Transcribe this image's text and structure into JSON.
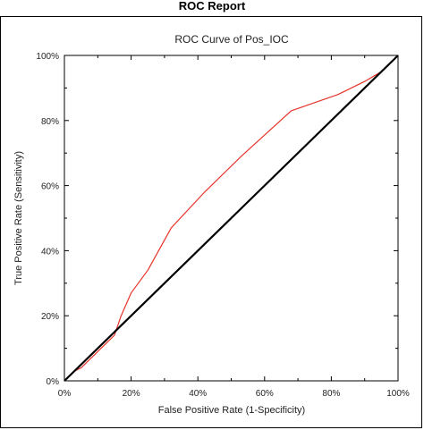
{
  "report": {
    "title": "ROC Report"
  },
  "chart_data": {
    "type": "line",
    "title": "ROC Curve of Pos_IOC",
    "xlabel": "False Positive Rate (1-Specificity)",
    "ylabel": "True Positive Rate (Sensitivity)",
    "xlim": [
      0,
      1
    ],
    "ylim": [
      0,
      1
    ],
    "x_ticks": [
      "0%",
      "20%",
      "40%",
      "60%",
      "80%",
      "100%"
    ],
    "y_ticks": [
      "0%",
      "20%",
      "40%",
      "60%",
      "80%",
      "100%"
    ],
    "grid": false,
    "legend": "none",
    "series": [
      {
        "color": "#e8332a",
        "x": [
          0,
          0.01,
          0.03,
          0.05,
          0.07,
          0.09,
          0.11,
          0.13,
          0.15,
          0.16,
          0.17,
          0.2,
          0.25,
          0.32,
          0.42,
          0.53,
          0.68,
          0.82,
          0.9,
          0.95,
          1.0
        ],
        "y": [
          0,
          0.01,
          0.03,
          0.04,
          0.06,
          0.08,
          0.1,
          0.12,
          0.14,
          0.17,
          0.2,
          0.27,
          0.34,
          0.47,
          0.58,
          0.69,
          0.83,
          0.88,
          0.92,
          0.95,
          1.0
        ]
      },
      {
        "color": "#000000",
        "x": [
          0,
          1
        ],
        "y": [
          0,
          1
        ]
      }
    ]
  },
  "colors": {
    "curve": "#e8332a",
    "reference": "#000000"
  }
}
